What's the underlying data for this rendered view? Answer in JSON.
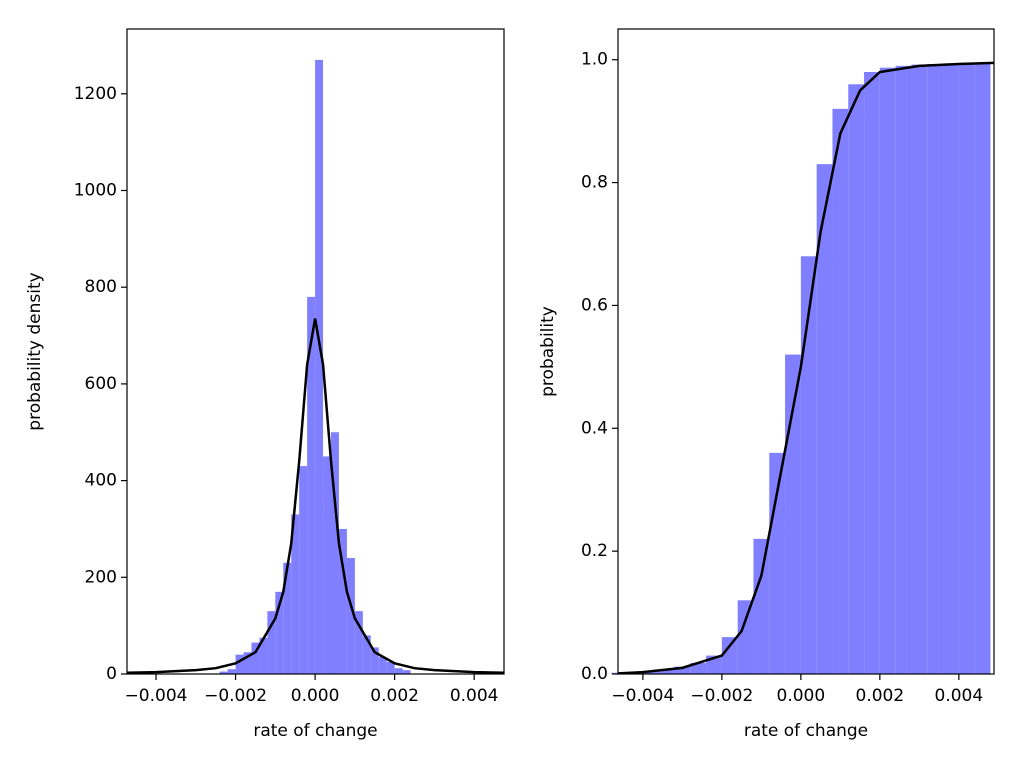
{
  "chart_data": [
    {
      "type": "histogram",
      "xlabel": "rate of change",
      "ylabel": "probability density",
      "color": "#7f7fff",
      "line_color": "#000000",
      "bins": [
        -0.0024,
        -0.0022,
        -0.002,
        -0.0018,
        -0.0016,
        -0.0014,
        -0.0012,
        -0.001,
        -0.0008,
        -0.0006,
        -0.0004,
        -0.0002,
        0,
        0.0002,
        0.0004,
        0.0006,
        0.0008,
        0.001,
        0.0012,
        0.0014,
        0.0016,
        0.0018,
        0.002,
        0.0022,
        0.0024
      ],
      "counts": [
        5,
        10,
        40,
        45,
        65,
        75,
        130,
        170,
        230,
        330,
        430,
        780,
        1270,
        450,
        500,
        300,
        240,
        130,
        80,
        55,
        35,
        25,
        12,
        8
      ],
      "curve": {
        "x": [
          -0.005,
          -0.004,
          -0.003,
          -0.0025,
          -0.002,
          -0.0015,
          -0.001,
          -0.0008,
          -0.0006,
          -0.0004,
          -0.0002,
          0,
          0.0002,
          0.0004,
          0.0006,
          0.0008,
          0.001,
          0.0015,
          0.002,
          0.0025,
          0.003,
          0.004,
          0.005
        ],
        "y": [
          2,
          4,
          8,
          12,
          22,
          45,
          115,
          170,
          270,
          440,
          640,
          735,
          640,
          440,
          270,
          170,
          115,
          45,
          22,
          12,
          8,
          4,
          2
        ]
      },
      "xlim": [
        -0.00473,
        0.00475
      ],
      "ylim": [
        0,
        1334
      ],
      "xticks": [
        {
          "value": -0.004,
          "label": "−0.004"
        },
        {
          "value": -0.002,
          "label": "−0.002"
        },
        {
          "value": 0,
          "label": "0.000"
        },
        0.002,
        0.004
      ],
      "yticks": [
        0,
        200,
        400,
        600,
        800,
        1000,
        1200
      ]
    },
    {
      "type": "histogram",
      "xlabel": "rate of change",
      "ylabel": "probability",
      "color": "#7f7fff",
      "line_color": "#000000",
      "bins": [
        -0.0048,
        -0.0044,
        -0.004,
        -0.0036,
        -0.0032,
        -0.0028,
        -0.0024,
        -0.002,
        -0.0016,
        -0.0012,
        -0.0008,
        -0.0004,
        0,
        0.0004,
        0.0008,
        0.0012,
        0.0016,
        0.002,
        0.0024,
        0.0028,
        0.0032,
        0.0036,
        0.004,
        0.0044,
        0.0048
      ],
      "counts": [
        0.002,
        0.003,
        0.005,
        0.008,
        0.012,
        0.018,
        0.03,
        0.06,
        0.12,
        0.22,
        0.36,
        0.52,
        0.68,
        0.83,
        0.92,
        0.96,
        0.98,
        0.987,
        0.99,
        0.992,
        0.993,
        0.994,
        0.995,
        0.995
      ],
      "curve": {
        "x": [
          -0.005,
          -0.004,
          -0.003,
          -0.002,
          -0.0015,
          -0.001,
          -0.0005,
          0,
          0.0005,
          0.001,
          0.0015,
          0.002,
          0.003,
          0.004,
          0.005
        ],
        "y": [
          0.0,
          0.003,
          0.01,
          0.03,
          0.07,
          0.16,
          0.33,
          0.5,
          0.72,
          0.88,
          0.95,
          0.98,
          0.99,
          0.993,
          0.995
        ]
      },
      "xlim": [
        -0.00463,
        0.00489
      ],
      "ylim": [
        0,
        1.05
      ],
      "xticks": [
        {
          "value": -0.004,
          "label": "−0.004"
        },
        {
          "value": -0.002,
          "label": "−0.002"
        },
        {
          "value": 0,
          "label": "0.000"
        },
        0.002,
        0.004
      ],
      "yticks": [
        {
          "value": 0,
          "label": "0.0"
        },
        0.2,
        0.4,
        0.6,
        0.8,
        {
          "value": 1,
          "label": "1.0"
        }
      ]
    }
  ]
}
